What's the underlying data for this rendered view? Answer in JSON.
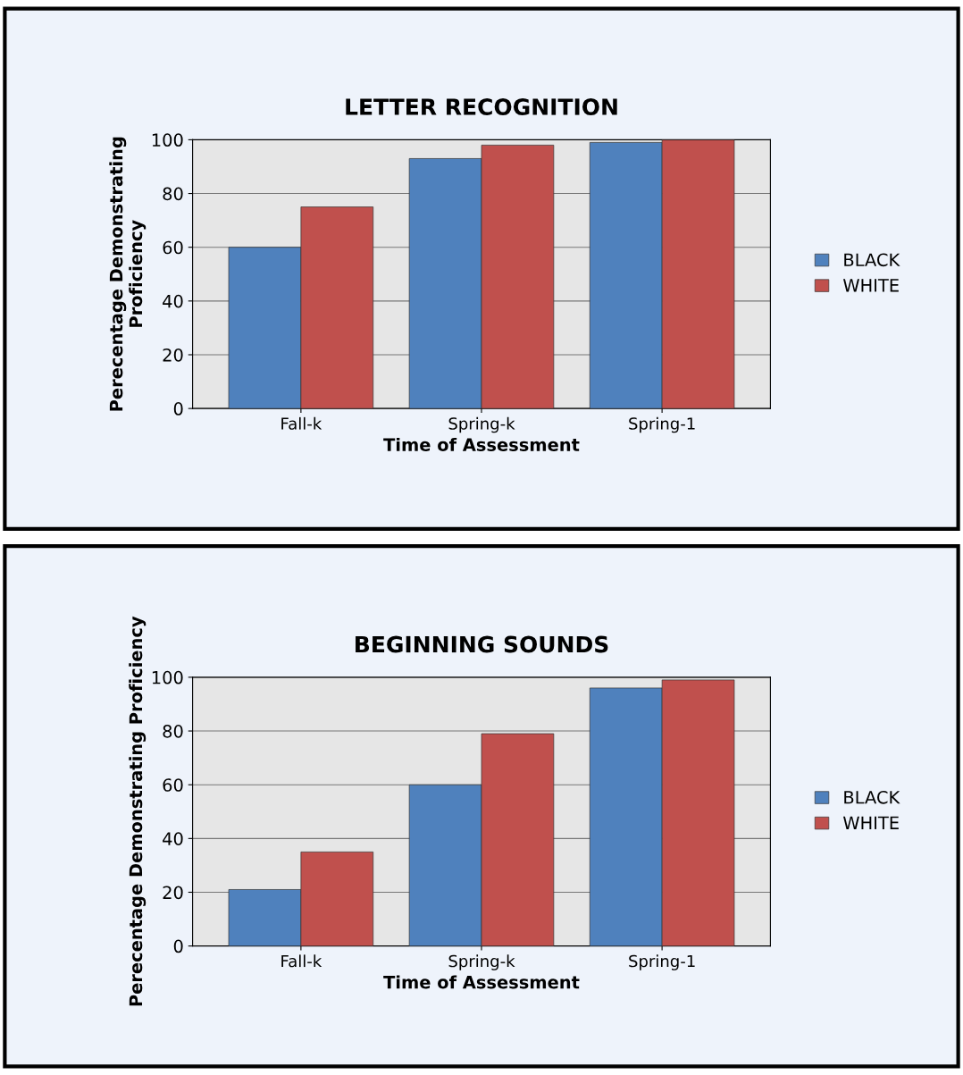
{
  "chart_data": [
    {
      "type": "bar",
      "title": "LETTER RECOGNITION",
      "xlabel": "Time of Assessment",
      "ylabel": "Perecentage Demonstrating\nProficiency",
      "categories": [
        "Fall-k",
        "Spring-k",
        "Spring-1"
      ],
      "series": [
        {
          "name": "BLACK",
          "color": "#4f81bd",
          "values": [
            60,
            93,
            99
          ]
        },
        {
          "name": "WHITE",
          "color": "#c0504d",
          "values": [
            75,
            98,
            100
          ]
        }
      ],
      "ylim": [
        0,
        100
      ],
      "yticks": [
        0,
        20,
        40,
        60,
        80,
        100
      ],
      "grid": "y",
      "legend": "right"
    },
    {
      "type": "bar",
      "title": "BEGINNING SOUNDS",
      "xlabel": "Time of Assessment",
      "ylabel": "Perecentage Demonstrating Proficiency",
      "categories": [
        "Fall-k",
        "Spring-k",
        "Spring-1"
      ],
      "series": [
        {
          "name": "BLACK",
          "color": "#4f81bd",
          "values": [
            21,
            60,
            96
          ]
        },
        {
          "name": "WHITE",
          "color": "#c0504d",
          "values": [
            35,
            79,
            99
          ]
        }
      ],
      "ylim": [
        0,
        100
      ],
      "yticks": [
        0,
        20,
        40,
        60,
        80,
        100
      ],
      "grid": "y",
      "legend": "right"
    }
  ]
}
